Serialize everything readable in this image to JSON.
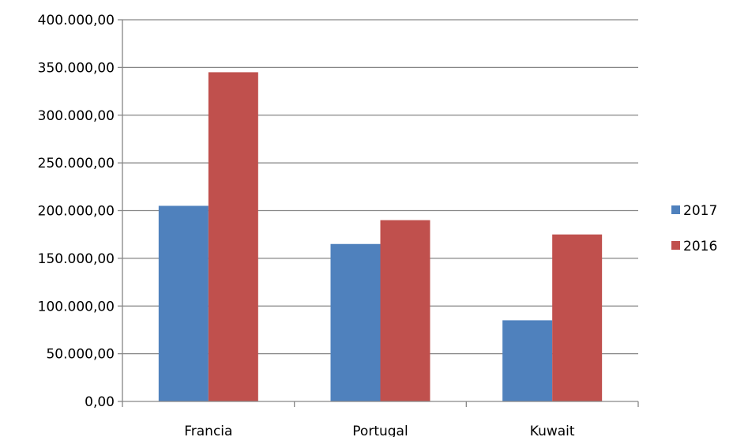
{
  "chart_data": {
    "type": "bar",
    "title": "",
    "xlabel": "",
    "ylabel": "",
    "categories": [
      "Francia",
      "Portugal",
      "Kuwait"
    ],
    "series": [
      {
        "name": "2017",
        "values": [
          205000,
          165000,
          85000
        ],
        "color": "#4f81bd"
      },
      {
        "name": "2016",
        "values": [
          345000,
          190000,
          175000
        ],
        "color": "#c0504d"
      }
    ],
    "ylim": [
      0,
      400000
    ],
    "yticks": [
      0,
      50000,
      100000,
      150000,
      200000,
      250000,
      300000,
      350000,
      400000
    ],
    "ytick_labels": [
      "0,00",
      "50.000,00",
      "100.000,00",
      "150.000,00",
      "200.000,00",
      "250.000,00",
      "300.000,00",
      "350.000,00",
      "400.000,00"
    ],
    "grid": true,
    "legend_position": "right"
  }
}
